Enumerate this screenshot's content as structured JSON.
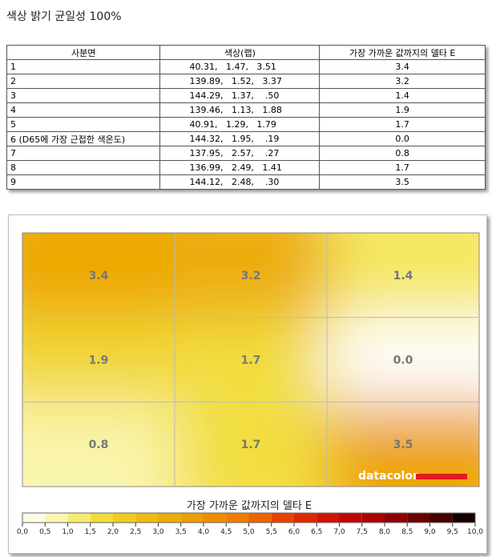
{
  "header": {
    "title": "색상 밝기 균일성 100%"
  },
  "table": {
    "columns": [
      "사분면",
      "색상(랩)",
      "가장 가까운 값까지의 델타 E"
    ],
    "rows": [
      [
        "1",
        "40.31,   1.47,   3.51",
        "3.4"
      ],
      [
        "2",
        "139.89,   1.52,   3.37",
        "3.2"
      ],
      [
        "3",
        "144.29,   1.37,    .50",
        "1.4"
      ],
      [
        "4",
        "139.46,   1.13,   1.88",
        "1.9"
      ],
      [
        "5",
        "40.91,   1.29,   1.79",
        "1.7"
      ],
      [
        "6 (D65에 가장 근접한 색온도)",
        "144.32,   1.95,    .19",
        "0.0"
      ],
      [
        "7",
        "137.95,   2.57,    .27",
        "0.8"
      ],
      [
        "8",
        "136.99,   2.49,   1.41",
        "1.7"
      ],
      [
        "9",
        "144.12,   2.48,    .30",
        "3.5"
      ]
    ]
  },
  "heatmap": {
    "cells": [
      "3.4",
      "3.2",
      "1.4",
      "1.9",
      "1.7",
      "0.0",
      "0.8",
      "1.7",
      "3.5"
    ],
    "logo": "datacolor",
    "colorbar_title": "가장 가까운 값까지의 델타 E",
    "colorbar_ticks": [
      "0,0",
      "0,5",
      "1,0",
      "1,5",
      "2,0",
      "2,5",
      "3,0",
      "3,5",
      "4,0",
      "4,5",
      "5,0",
      "5,5",
      "6,0",
      "6,5",
      "7,0",
      "7,5",
      "8,0",
      "8,5",
      "9,0",
      "9,5",
      "10,0"
    ]
  }
}
